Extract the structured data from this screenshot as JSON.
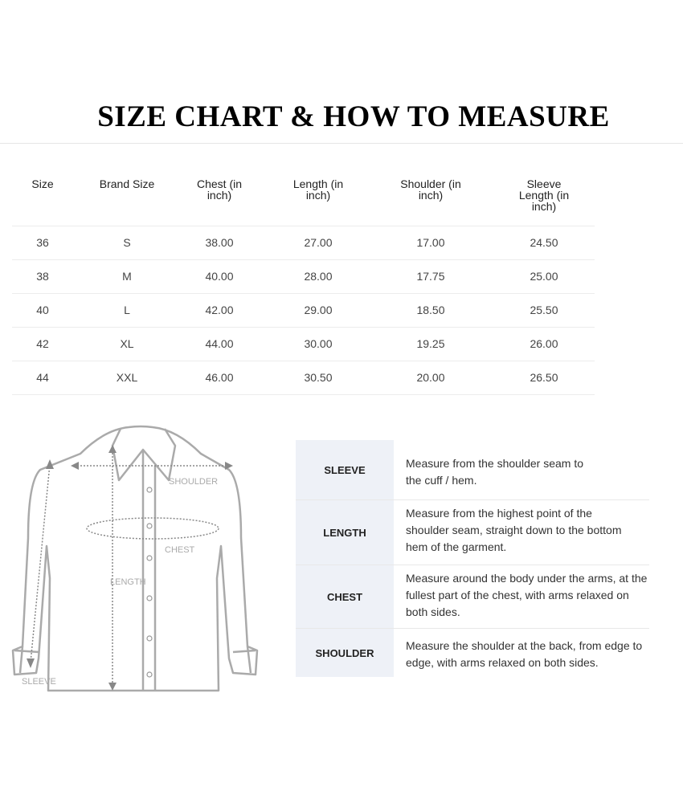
{
  "title": "SIZE CHART & HOW TO MEASURE",
  "size_table": {
    "headers": [
      "Size",
      "Brand Size",
      "Chest (in inch)",
      "Length (in inch)",
      "Shoulder (in inch)",
      "Sleeve Length (in inch)"
    ],
    "rows": [
      [
        "36",
        "S",
        "38.00",
        "27.00",
        "17.00",
        "24.50"
      ],
      [
        "38",
        "M",
        "40.00",
        "28.00",
        "17.75",
        "25.00"
      ],
      [
        "40",
        "L",
        "42.00",
        "29.00",
        "18.50",
        "25.50"
      ],
      [
        "42",
        "XL",
        "44.00",
        "30.00",
        "19.25",
        "26.00"
      ],
      [
        "44",
        "XXL",
        "46.00",
        "30.50",
        "20.00",
        "26.50"
      ]
    ]
  },
  "diagram": {
    "labels": {
      "shoulder": "SHOULDER",
      "chest": "CHEST",
      "length": "LENGTH",
      "sleeve": "SLEEVE"
    }
  },
  "measure_guide": [
    {
      "label": "SLEEVE",
      "description": "Measure from the shoulder seam to the cuff / hem."
    },
    {
      "label": "LENGTH",
      "description": "Measure from the highest point of the shoulder seam, straight down to the bottom hem of the garment."
    },
    {
      "label": "CHEST",
      "description": "Measure around the body under the arms, at the fullest part of the chest, with arms relaxed on both sides."
    },
    {
      "label": "SHOULDER",
      "description": "Measure the shoulder at the back, from edge to edge, with arms relaxed on both sides."
    }
  ],
  "colors": {
    "label_bg": "#eef1f7",
    "title": "#000000"
  }
}
